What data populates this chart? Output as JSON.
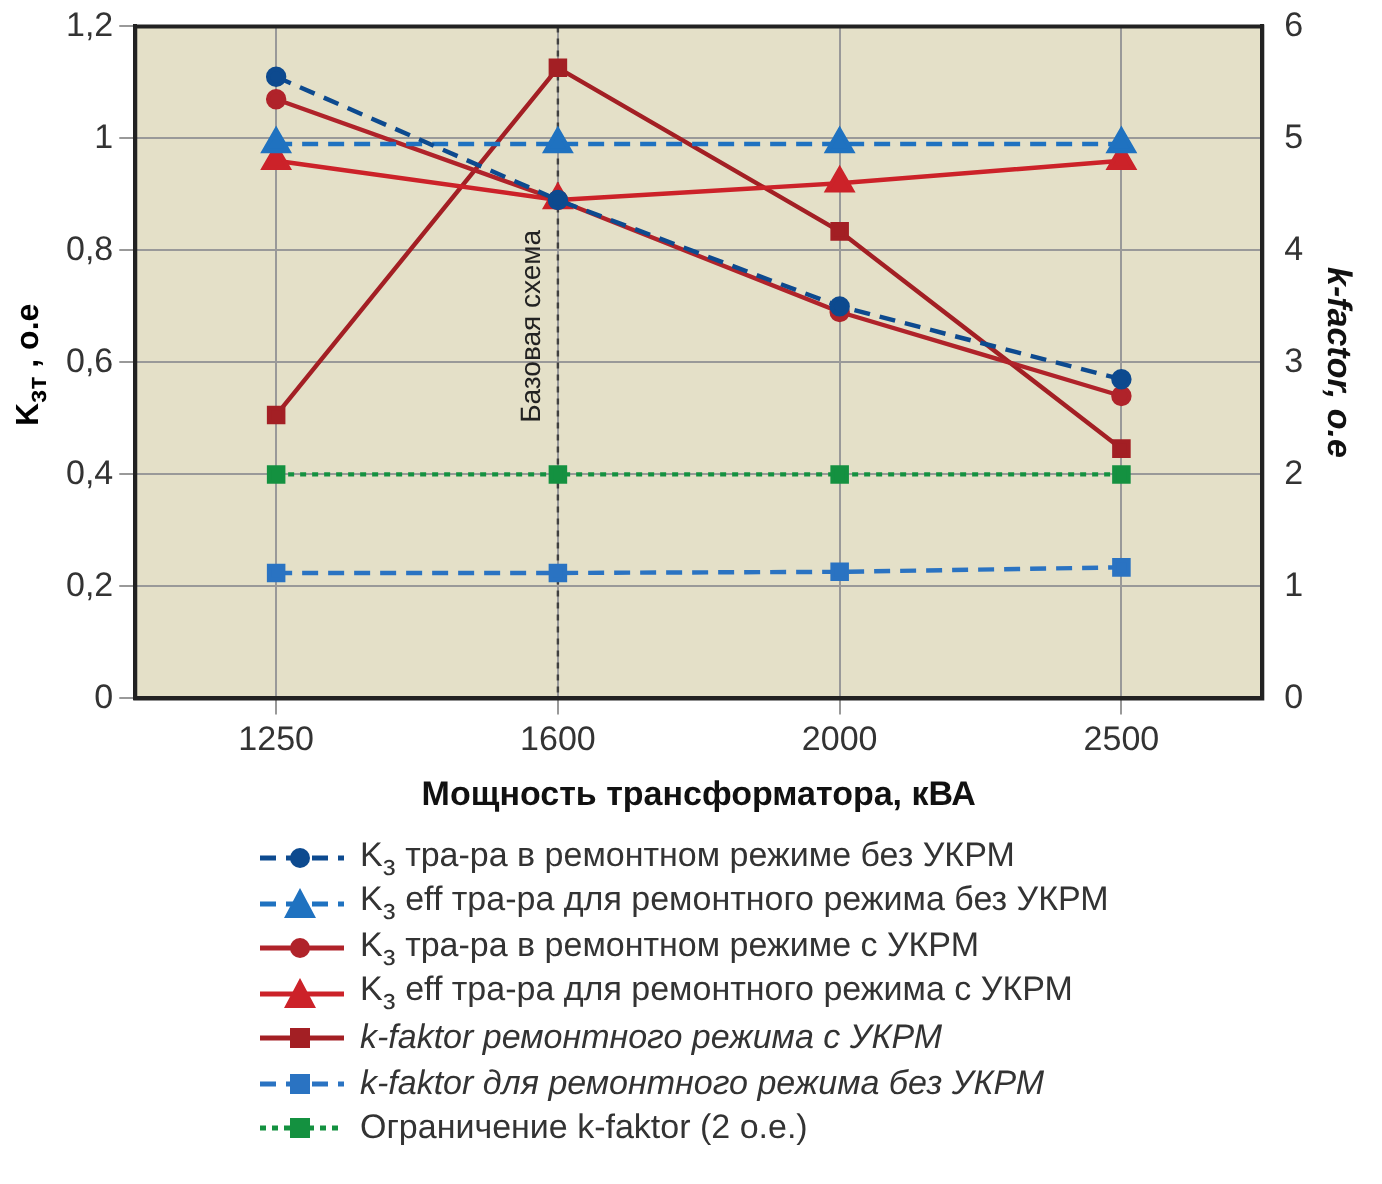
{
  "chart_data": {
    "type": "line",
    "xlabel": "Мощность трансформатора, кВА",
    "ylabel": "K$_{зт}$ , о.е",
    "y2label": "k-factor, o.e",
    "categories": [
      "1250",
      "1600",
      "2000",
      "2500"
    ],
    "ylim": [
      0,
      1.2
    ],
    "yticks": [
      0,
      {
        "value": 0.2,
        "label": "0,2"
      },
      {
        "value": 0.4,
        "label": "0,4"
      },
      {
        "value": 0.6,
        "label": "0,6"
      },
      {
        "value": 0.8,
        "label": "0,8"
      },
      1,
      {
        "value": 1.2,
        "label": "1,2"
      }
    ],
    "y2lim": [
      0,
      6
    ],
    "y2ticks": [
      0,
      1,
      2,
      3,
      4,
      5,
      6
    ],
    "grid": true,
    "legend": "bottom",
    "ref_lines": [
      {
        "axis": "x",
        "value": "1600",
        "label": "Базовая схема",
        "color": "#404040",
        "line_style": "dotted"
      }
    ],
    "series": [
      {
        "name": "K$_{з}$ тра-ра в ремонтном режиме без УКРМ",
        "color": "#0d4a8f",
        "values": [
          1.11,
          0.89,
          0.7,
          0.57
        ],
        "marker": "circle",
        "line_style": "dashed"
      },
      {
        "name": "K$_{з}$ eff тра-ра для ремонтного режима без УКРМ",
        "color": "#1f72c0",
        "values": [
          0.99,
          0.99,
          0.99,
          0.99
        ],
        "marker": "triangle",
        "line_style": "dashed"
      },
      {
        "name": "K$_{з}$ тра-ра в ремонтном режиме с УКРМ",
        "color": "#b0232a",
        "values": [
          1.07,
          0.89,
          0.69,
          0.54
        ],
        "marker": "circle",
        "line_style": "solid"
      },
      {
        "name": "K$_{з}$ eff тра-ра для ремонтного режима с УКРМ",
        "color": "#cc2229",
        "values": [
          0.96,
          0.89,
          0.92,
          0.96
        ],
        "marker": "triangle",
        "line_style": "solid"
      },
      {
        "name": "k-faktor ремонтного режима с УКРМ",
        "color": "#a31f24",
        "values": [
          2.53,
          5.63,
          4.17,
          2.23
        ],
        "marker": "square",
        "line_style": "solid",
        "axis": "y2"
      },
      {
        "name": "k-faktor для ремонтного режима без УКРМ",
        "color": "#2a73c2",
        "values": [
          1.12,
          1.12,
          1.13,
          1.17
        ],
        "marker": "square",
        "line_style": "dashed",
        "axis": "y2"
      },
      {
        "name": "Ограничение k-faktor (2 о.е.)",
        "color": "#149140",
        "values": [
          2,
          2,
          2,
          2
        ],
        "marker": "square",
        "line_style": "dotted",
        "axis": "y2"
      }
    ]
  }
}
